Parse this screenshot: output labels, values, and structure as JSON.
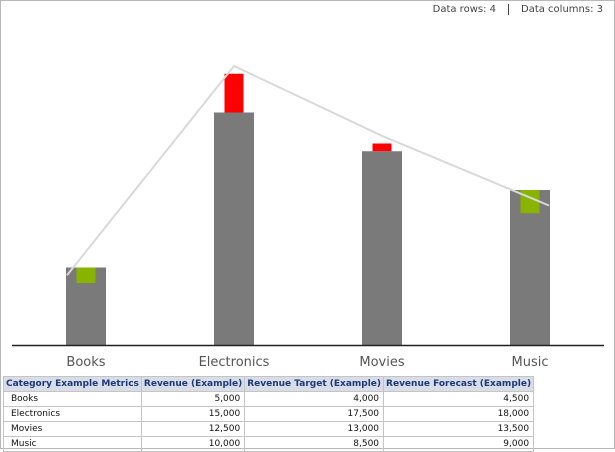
{
  "meta": {
    "data_rows": "Data rows: 4",
    "data_columns": "Data columns: 3"
  },
  "colors": {
    "bar": "#7a7a7a",
    "above_target": "#88b400",
    "below_target": "#ff0000",
    "forecast_line": "#d9d9d9",
    "axis": "#222222"
  },
  "chart_data": {
    "type": "bar",
    "categories": [
      "Books",
      "Electronics",
      "Movies",
      "Music"
    ],
    "series": [
      {
        "name": "Revenue (Example)",
        "values": [
          5000,
          15000,
          12500,
          10000
        ]
      },
      {
        "name": "Revenue Target (Example)",
        "values": [
          4000,
          17500,
          13000,
          8500
        ]
      },
      {
        "name": "Revenue Forecast (Example)",
        "values": [
          4500,
          18000,
          13500,
          9000
        ]
      }
    ],
    "ylim": [
      0,
      18000
    ],
    "grid": false
  },
  "table": {
    "headers": [
      "Category Example Metrics",
      "Revenue (Example)",
      "Revenue Target (Example)",
      "Revenue Forecast (Example)"
    ],
    "rows": [
      [
        "Books",
        "5,000",
        "4,000",
        "4,500"
      ],
      [
        "Electronics",
        "15,000",
        "17,500",
        "18,000"
      ],
      [
        "Movies",
        "12,500",
        "13,000",
        "13,500"
      ],
      [
        "Music",
        "10,000",
        "8,500",
        "9,000"
      ]
    ]
  }
}
